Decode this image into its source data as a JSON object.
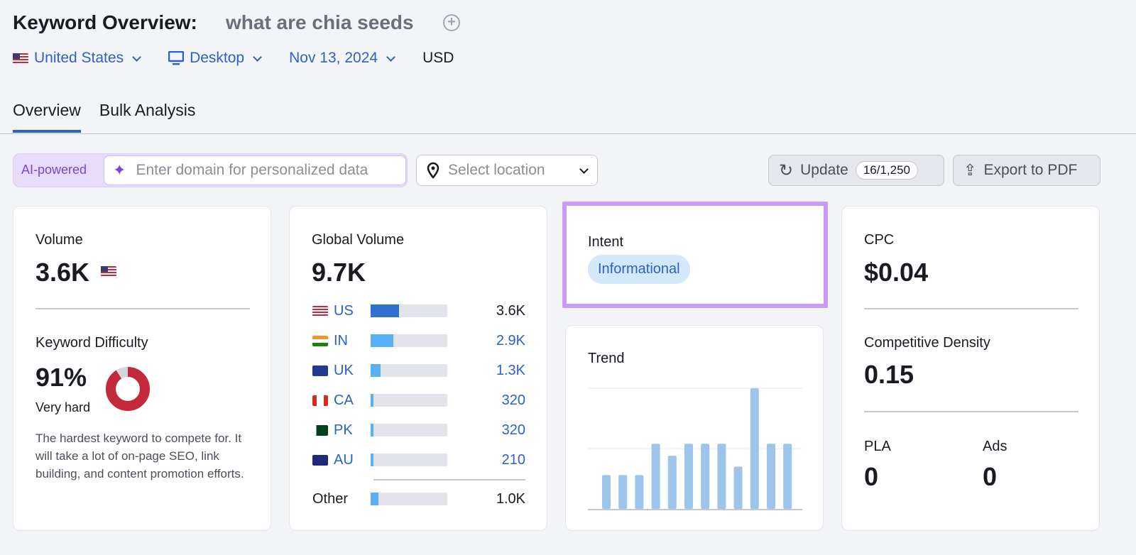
{
  "header": {
    "title": "Keyword Overview:",
    "keyword": "what are chia seeds",
    "filters": {
      "country": "United States",
      "device": "Desktop",
      "date": "Nov 13, 2024",
      "currency": "USD"
    }
  },
  "tabs": [
    {
      "label": "Overview",
      "active": true
    },
    {
      "label": "Bulk Analysis",
      "active": false
    }
  ],
  "toolbar": {
    "ai_label": "AI-powered",
    "domain_placeholder": "Enter domain for personalized data",
    "location_placeholder": "Select location",
    "update_label": "Update",
    "update_count": "16/1,250",
    "export_label": "Export to PDF"
  },
  "volume": {
    "label": "Volume",
    "value": "3.6K",
    "kd_label": "Keyword Difficulty",
    "kd_value": "91%",
    "kd_percent": 91,
    "kd_level": "Very hard",
    "kd_description": "The hardest keyword to compete for. It will take a lot of on-page SEO, link building, and content promotion efforts.",
    "kd_color": "#c4283b"
  },
  "global": {
    "label": "Global Volume",
    "value": "9.7K",
    "rows": [
      {
        "code": "US",
        "value": "3.6K",
        "share": 0.37,
        "color": "#2f6fce"
      },
      {
        "code": "IN",
        "value": "2.9K",
        "share": 0.3,
        "color": "#5ab0f7"
      },
      {
        "code": "UK",
        "value": "1.3K",
        "share": 0.13,
        "color": "#5ab0f7"
      },
      {
        "code": "CA",
        "value": "320",
        "share": 0.04,
        "color": "#5ab0f7"
      },
      {
        "code": "PK",
        "value": "320",
        "share": 0.04,
        "color": "#5ab0f7"
      },
      {
        "code": "AU",
        "value": "210",
        "share": 0.03,
        "color": "#5ab0f7"
      }
    ],
    "other": {
      "label": "Other",
      "value": "1.0K",
      "share": 0.1
    }
  },
  "intent": {
    "label": "Intent",
    "badge": "Informational"
  },
  "trend": {
    "label": "Trend",
    "relative_values": [
      0.28,
      0.28,
      0.28,
      0.54,
      0.44,
      0.54,
      0.54,
      0.54,
      0.35,
      1.0,
      0.54,
      0.54
    ],
    "color": "#9dc5ec"
  },
  "cpc": {
    "label": "CPC",
    "value": "$0.04",
    "cd_label": "Competitive Density",
    "cd_value": "0.15",
    "pla_label": "PLA",
    "pla_value": "0",
    "ads_label": "Ads",
    "ads_value": "0"
  }
}
